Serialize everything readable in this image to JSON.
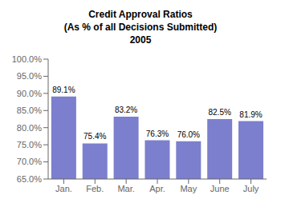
{
  "chart_data": {
    "type": "bar",
    "title": "Credit Approval Ratios\n(As % of all Decisions Submitted)\n2005",
    "categories": [
      "Jan.",
      "Feb.",
      "Mar.",
      "Apr.",
      "May",
      "June",
      "July"
    ],
    "values": [
      89.1,
      75.4,
      83.2,
      76.3,
      76.0,
      82.5,
      81.9
    ],
    "value_labels": [
      "89.1%",
      "75.4%",
      "83.2%",
      "76.3%",
      "76.0%",
      "82.5%",
      "81.9%"
    ],
    "data_labels": true,
    "color": "#7b7fcd",
    "ylim": [
      65.0,
      100.0
    ],
    "yticks": [
      {
        "value": 65.0,
        "label": "65.0%"
      },
      {
        "value": 70.0,
        "label": "70.0%"
      },
      {
        "value": 75.0,
        "label": "75.0%"
      },
      {
        "value": 80.0,
        "label": "80.0%"
      },
      {
        "value": 85.0,
        "label": "85.0%"
      },
      {
        "value": 90.0,
        "label": "90.0%"
      },
      {
        "value": 95.0,
        "label": "95.0%"
      },
      {
        "value": 100.0,
        "label": "100.0%"
      }
    ],
    "grid": false
  }
}
